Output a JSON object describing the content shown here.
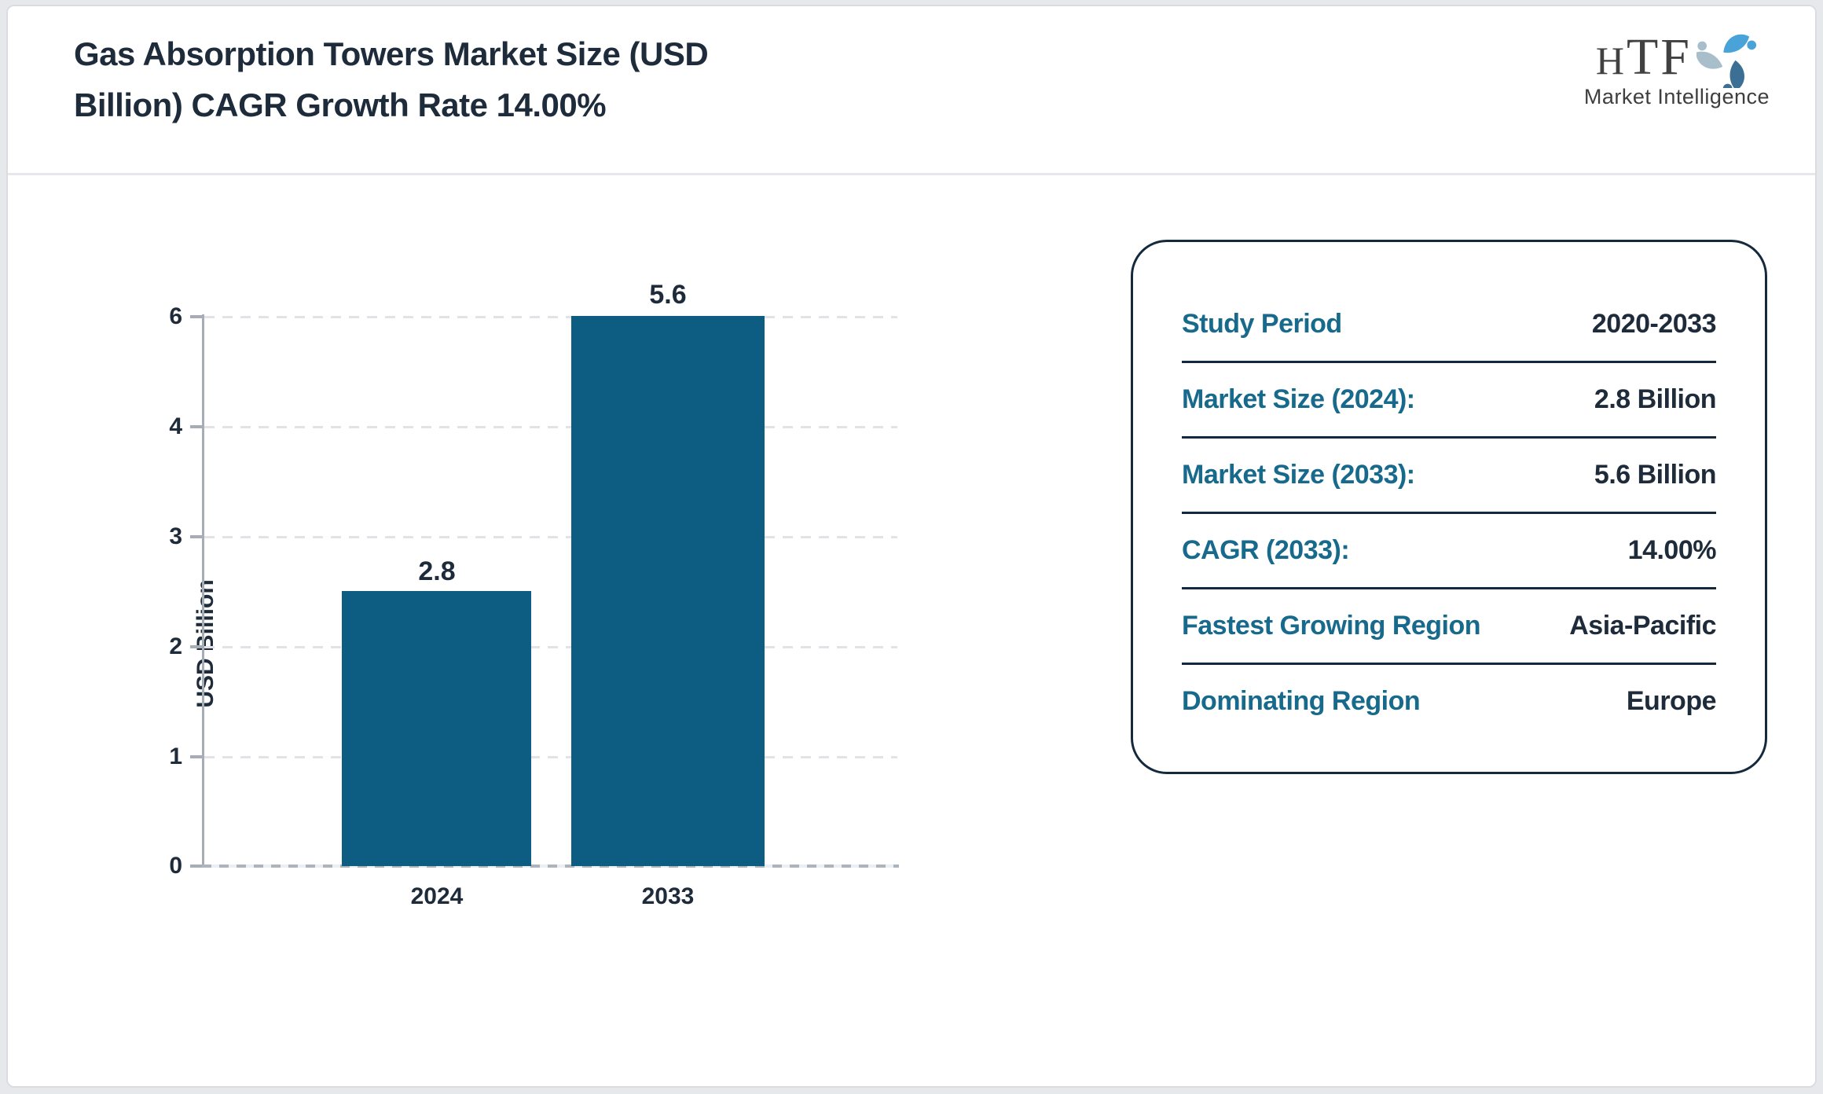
{
  "header": {
    "title_lines": [
      "Gas Absorption Towers Market Size (USD",
      "Billion) CAGR Growth Rate 14.00%"
    ],
    "title_full": "Gas Absorption Towers Market Size (USD Billion) CAGR Growth Rate 14.00%",
    "logo": {
      "text": "HTF",
      "text_h": "H",
      "text_tf": "TF",
      "subtext": "Market Intelligence",
      "swirl_colors": [
        "#4aa3d8",
        "#3c6f94",
        "#a9becb"
      ]
    }
  },
  "chart_data": {
    "type": "bar",
    "title": "",
    "categories": [
      "2024",
      "2033"
    ],
    "values": [
      2.8,
      5.6
    ],
    "bar_labels": [
      "2.8",
      "5.6"
    ],
    "series": [
      {
        "name": "Market Size (USD Billion)",
        "values": [
          2.8,
          5.6
        ]
      }
    ],
    "xlabel": "",
    "ylabel": "USD Billion",
    "ylim": [
      0,
      6
    ],
    "ytick_labels_top_to_bottom": [
      "6",
      "4",
      "3",
      "2",
      "1",
      "0"
    ],
    "grid": "horizontal dashed, evenly spaced",
    "legend": "none",
    "bar_color": "#0d5d82",
    "bar_heights_pct": [
      50,
      100
    ]
  },
  "info_panel": {
    "label_color": "#176a8c",
    "value_color": "#1e2b3a",
    "rows": [
      {
        "label": "Study Period",
        "value": "2020-2033"
      },
      {
        "label": "Market Size (2024):",
        "value": "2.8 Billion"
      },
      {
        "label": "Market Size (2033):",
        "value": "5.6 Billion"
      },
      {
        "label": "CAGR (2033):",
        "value": "14.00%"
      },
      {
        "label": "Fastest Growing Region",
        "value": "Asia-Pacific"
      },
      {
        "label": "Dominating Region",
        "value": "Europe"
      }
    ]
  }
}
